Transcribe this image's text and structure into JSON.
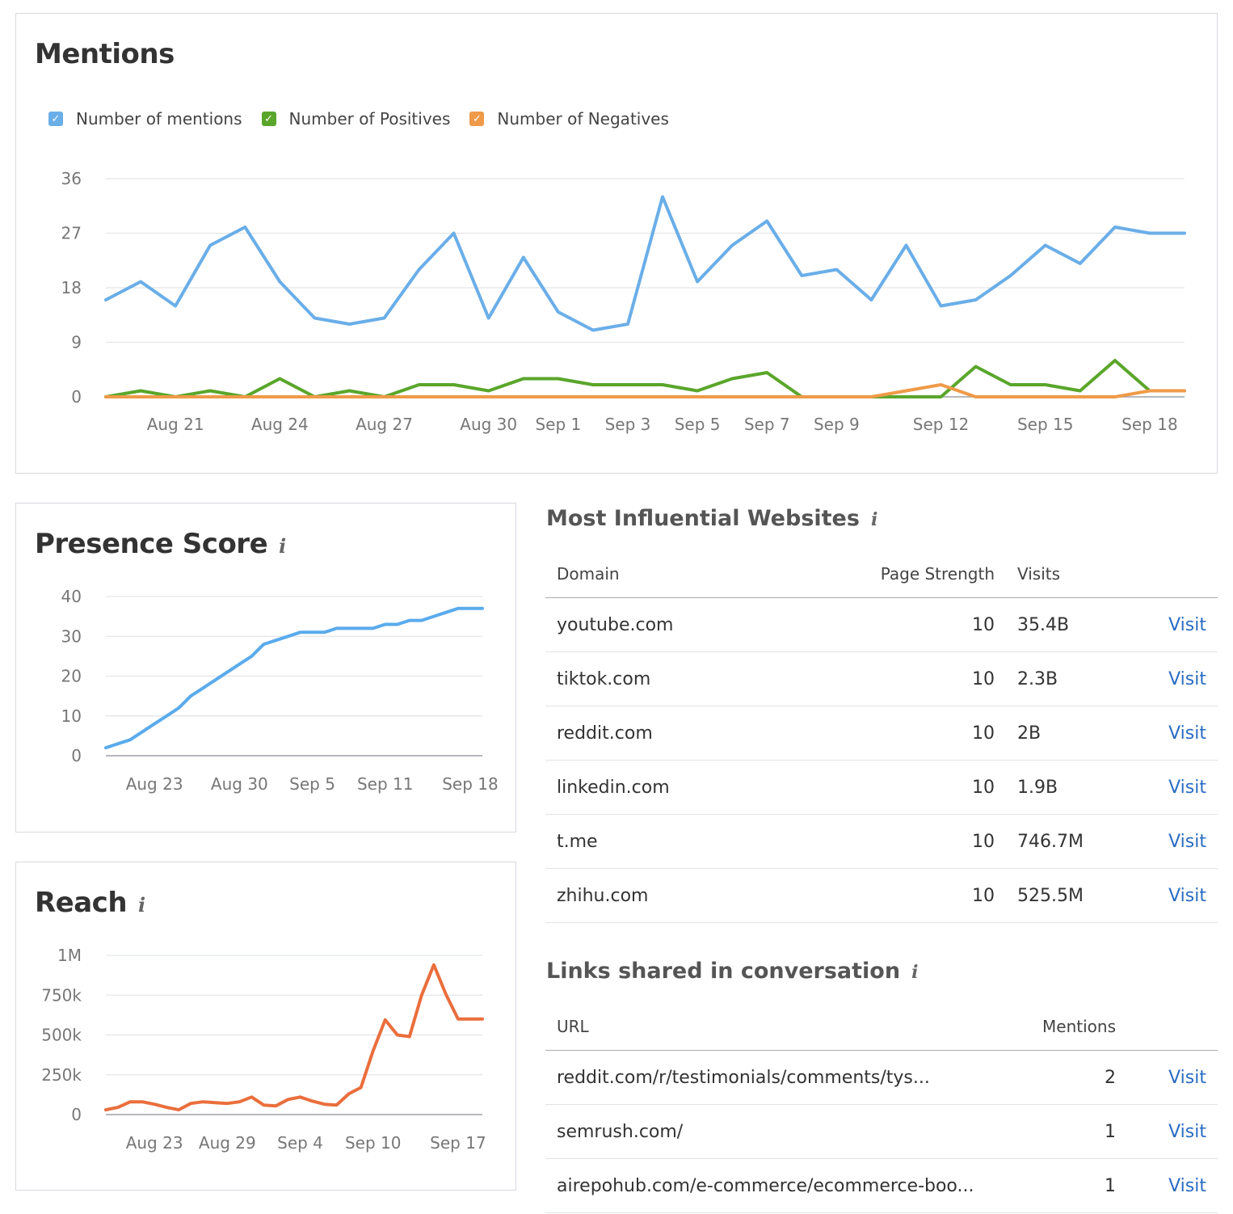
{
  "mentions": {
    "title": "Mentions",
    "legend": [
      {
        "label": "Number of mentions",
        "color": "#6aaee8"
      },
      {
        "label": "Number of Positives",
        "color": "#5aa62b"
      },
      {
        "label": "Number of Negatives",
        "color": "#ef9a48"
      }
    ]
  },
  "presence": {
    "title": "Presence Score",
    "info_icon": "info-icon"
  },
  "reach": {
    "title": "Reach",
    "info_icon": "info-icon"
  },
  "websites": {
    "title": "Most Influential Websites",
    "headers": {
      "domain": "Domain",
      "strength": "Page Strength",
      "visits": "Visits"
    },
    "rows": [
      {
        "domain": "youtube.com",
        "strength": "10",
        "visits": "35.4B",
        "action": "Visit"
      },
      {
        "domain": "tiktok.com",
        "strength": "10",
        "visits": "2.3B",
        "action": "Visit"
      },
      {
        "domain": "reddit.com",
        "strength": "10",
        "visits": "2B",
        "action": "Visit"
      },
      {
        "domain": "linkedin.com",
        "strength": "10",
        "visits": "1.9B",
        "action": "Visit"
      },
      {
        "domain": "t.me",
        "strength": "10",
        "visits": "746.7M",
        "action": "Visit"
      },
      {
        "domain": "zhihu.com",
        "strength": "10",
        "visits": "525.5M",
        "action": "Visit"
      }
    ]
  },
  "links": {
    "title": "Links shared in conversation",
    "headers": {
      "url": "URL",
      "mentions": "Mentions"
    },
    "rows": [
      {
        "url": "reddit.com/r/testimonials/comments/tys...",
        "mentions": "2",
        "action": "Visit"
      },
      {
        "url": "semrush.com/",
        "mentions": "1",
        "action": "Visit"
      },
      {
        "url": "airepohub.com/e-commerce/ecommerce-boo...",
        "mentions": "1",
        "action": "Visit"
      }
    ]
  },
  "chart_data": [
    {
      "type": "line",
      "title": "Mentions",
      "x": [
        "Aug 19",
        "Aug 20",
        "Aug 21",
        "Aug 22",
        "Aug 23",
        "Aug 24",
        "Aug 25",
        "Aug 26",
        "Aug 27",
        "Aug 28",
        "Aug 29",
        "Aug 30",
        "Aug 31",
        "Sep 1",
        "Sep 2",
        "Sep 3",
        "Sep 4",
        "Sep 5",
        "Sep 6",
        "Sep 7",
        "Sep 8",
        "Sep 9",
        "Sep 10",
        "Sep 11",
        "Sep 12",
        "Sep 13",
        "Sep 14",
        "Sep 15",
        "Sep 16",
        "Sep 17",
        "Sep 18",
        "Sep 19"
      ],
      "x_tick_labels": [
        "Aug 21",
        "Aug 24",
        "Aug 27",
        "Aug 30",
        "Sep 1",
        "Sep 3",
        "Sep 5",
        "Sep 7",
        "Sep 9",
        "Sep 12",
        "Sep 15",
        "Sep 18"
      ],
      "y_ticks": [
        0,
        9,
        18,
        27,
        36
      ],
      "ylim": [
        0,
        36
      ],
      "grid": true,
      "legend": "top-left",
      "series": [
        {
          "name": "Number of mentions",
          "color": "#6aaee8",
          "values": [
            16,
            19,
            15,
            25,
            28,
            19,
            13,
            12,
            13,
            21,
            27,
            13,
            23,
            14,
            11,
            12,
            33,
            19,
            25,
            29,
            20,
            21,
            16,
            25,
            15,
            16,
            20,
            25,
            22,
            28,
            27,
            27
          ]
        },
        {
          "name": "Number of Positives",
          "color": "#5aa62b",
          "values": [
            0,
            1,
            0,
            1,
            0,
            3,
            0,
            1,
            0,
            2,
            2,
            1,
            3,
            3,
            2,
            2,
            2,
            1,
            3,
            4,
            0,
            0,
            0,
            0,
            0,
            5,
            2,
            2,
            1,
            6,
            1,
            1
          ]
        },
        {
          "name": "Number of Negatives",
          "color": "#ef9a48",
          "values": [
            0,
            0,
            0,
            0,
            0,
            0,
            0,
            0,
            0,
            0,
            0,
            0,
            0,
            0,
            0,
            0,
            0,
            0,
            0,
            0,
            0,
            0,
            0,
            1,
            2,
            0,
            0,
            0,
            0,
            0,
            1,
            1
          ]
        }
      ]
    },
    {
      "type": "line",
      "title": "Presence Score",
      "x": [
        "Aug 19",
        "Aug 20",
        "Aug 21",
        "Aug 22",
        "Aug 23",
        "Aug 24",
        "Aug 25",
        "Aug 26",
        "Aug 27",
        "Aug 28",
        "Aug 29",
        "Aug 30",
        "Aug 31",
        "Sep 1",
        "Sep 2",
        "Sep 3",
        "Sep 4",
        "Sep 5",
        "Sep 6",
        "Sep 7",
        "Sep 8",
        "Sep 9",
        "Sep 10",
        "Sep 11",
        "Sep 12",
        "Sep 13",
        "Sep 14",
        "Sep 15",
        "Sep 16",
        "Sep 17",
        "Sep 18",
        "Sep 19"
      ],
      "x_tick_labels": [
        "Aug 23",
        "Aug 30",
        "Sep 5",
        "Sep 11",
        "Sep 18"
      ],
      "y_ticks": [
        0,
        10,
        20,
        30,
        40
      ],
      "ylim": [
        0,
        40
      ],
      "grid": true,
      "series": [
        {
          "color": "#5aabec",
          "values": [
            2,
            3,
            4,
            6,
            8,
            10,
            12,
            15,
            17,
            19,
            21,
            23,
            25,
            28,
            29,
            30,
            31,
            31,
            31,
            32,
            32,
            32,
            32,
            33,
            33,
            34,
            34,
            35,
            36,
            37,
            37,
            37
          ]
        }
      ]
    },
    {
      "type": "line",
      "title": "Reach",
      "x": [
        "Aug 19",
        "Aug 20",
        "Aug 21",
        "Aug 22",
        "Aug 23",
        "Aug 24",
        "Aug 25",
        "Aug 26",
        "Aug 27",
        "Aug 28",
        "Aug 29",
        "Aug 30",
        "Aug 31",
        "Sep 1",
        "Sep 2",
        "Sep 3",
        "Sep 4",
        "Sep 5",
        "Sep 6",
        "Sep 7",
        "Sep 8",
        "Sep 9",
        "Sep 10",
        "Sep 11",
        "Sep 12",
        "Sep 13",
        "Sep 14",
        "Sep 15",
        "Sep 16",
        "Sep 17",
        "Sep 18",
        "Sep 19"
      ],
      "x_tick_labels": [
        "Aug 23",
        "Aug 29",
        "Sep 4",
        "Sep 10",
        "Sep 17"
      ],
      "y_ticks": [
        "0",
        "250k",
        "500k",
        "750k",
        "1M"
      ],
      "ylim": [
        0,
        1000000
      ],
      "grid": true,
      "series": [
        {
          "color": "#ea6e3c",
          "values": [
            30000,
            45000,
            80000,
            80000,
            65000,
            45000,
            30000,
            70000,
            80000,
            75000,
            70000,
            80000,
            110000,
            60000,
            55000,
            95000,
            110000,
            85000,
            65000,
            60000,
            130000,
            170000,
            400000,
            595000,
            500000,
            490000,
            750000,
            940000,
            755000,
            600000,
            600000,
            600000
          ]
        }
      ]
    }
  ]
}
